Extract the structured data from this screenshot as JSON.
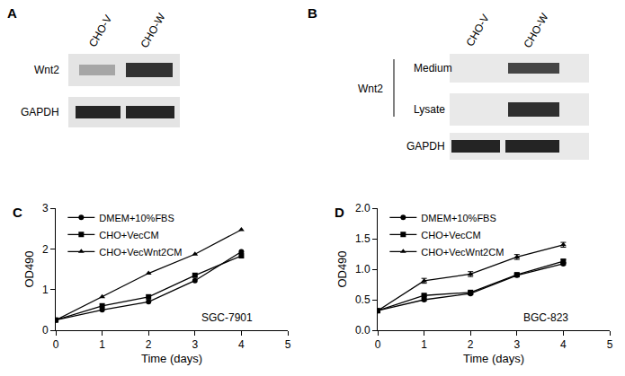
{
  "figure_panels": [
    {
      "panel": "A",
      "lanes": [
        "CHO-V",
        "CHO-W"
      ],
      "rows": [
        "Wnt2",
        "GAPDH"
      ]
    },
    {
      "panel": "B",
      "lanes": [
        "CHO-V",
        "CHO-W"
      ],
      "group": "Wnt2",
      "rows": [
        "Medium",
        "Lysate",
        "GAPDH"
      ]
    }
  ],
  "chart_data": [
    {
      "type": "line",
      "panel": "C",
      "annotation": "SGC-7901",
      "x_label": "Time (days)",
      "y_label": "OD490",
      "x": [
        0,
        1,
        2,
        3,
        4
      ],
      "xlim": [
        0,
        5
      ],
      "xticks": [
        0,
        1,
        2,
        3,
        4,
        5
      ],
      "ylim": [
        0,
        3
      ],
      "yticks": [
        0,
        1,
        2,
        3
      ],
      "grid": false,
      "legend": "upper left",
      "series": [
        {
          "name": "DMEM+10%FBS",
          "color": "#000000",
          "marker": "circle",
          "values": [
            0.25,
            0.5,
            0.7,
            1.22,
            1.93
          ]
        },
        {
          "name": "CHO+VecCM",
          "color": "#000000",
          "marker": "square",
          "values": [
            0.25,
            0.6,
            0.82,
            1.35,
            1.83
          ]
        },
        {
          "name": "CHO+VecWnt2CM",
          "color": "#000000",
          "marker": "triangle-up",
          "values": [
            0.25,
            0.82,
            1.4,
            1.87,
            2.47
          ]
        }
      ]
    },
    {
      "type": "line",
      "panel": "D",
      "annotation": "BGC-823",
      "x_label": "Time (days)",
      "y_label": "OD490",
      "x": [
        0,
        1,
        2,
        3,
        4
      ],
      "xlim": [
        0,
        5
      ],
      "xticks": [
        0,
        1,
        2,
        3,
        4,
        5
      ],
      "ylim": [
        0,
        2
      ],
      "yticks": [
        {
          "value": 0,
          "label": "0.0"
        },
        {
          "value": 0.5,
          "label": "0.5"
        },
        {
          "value": 1,
          "label": "1.0"
        },
        {
          "value": 1.5,
          "label": "1.5"
        },
        {
          "value": 2,
          "label": "2.0"
        }
      ],
      "grid": false,
      "legend": "upper left",
      "series": [
        {
          "name": "DMEM+10%FBS",
          "color": "#000000",
          "marker": "circle",
          "values": [
            0.32,
            0.5,
            0.6,
            0.9,
            1.09
          ],
          "errors": [
            0,
            0.02,
            0.02,
            0.02,
            0.02
          ]
        },
        {
          "name": "CHO+VecCM",
          "color": "#000000",
          "marker": "square",
          "values": [
            0.32,
            0.57,
            0.62,
            0.91,
            1.13
          ],
          "errors": [
            0,
            0.02,
            0.02,
            0.02,
            0.03
          ]
        },
        {
          "name": "CHO+VecWnt2CM",
          "color": "#000000",
          "marker": "triangle-up",
          "values": [
            0.32,
            0.81,
            0.92,
            1.2,
            1.4
          ],
          "errors": [
            0,
            0.04,
            0.04,
            0.04,
            0.04
          ]
        }
      ]
    }
  ]
}
